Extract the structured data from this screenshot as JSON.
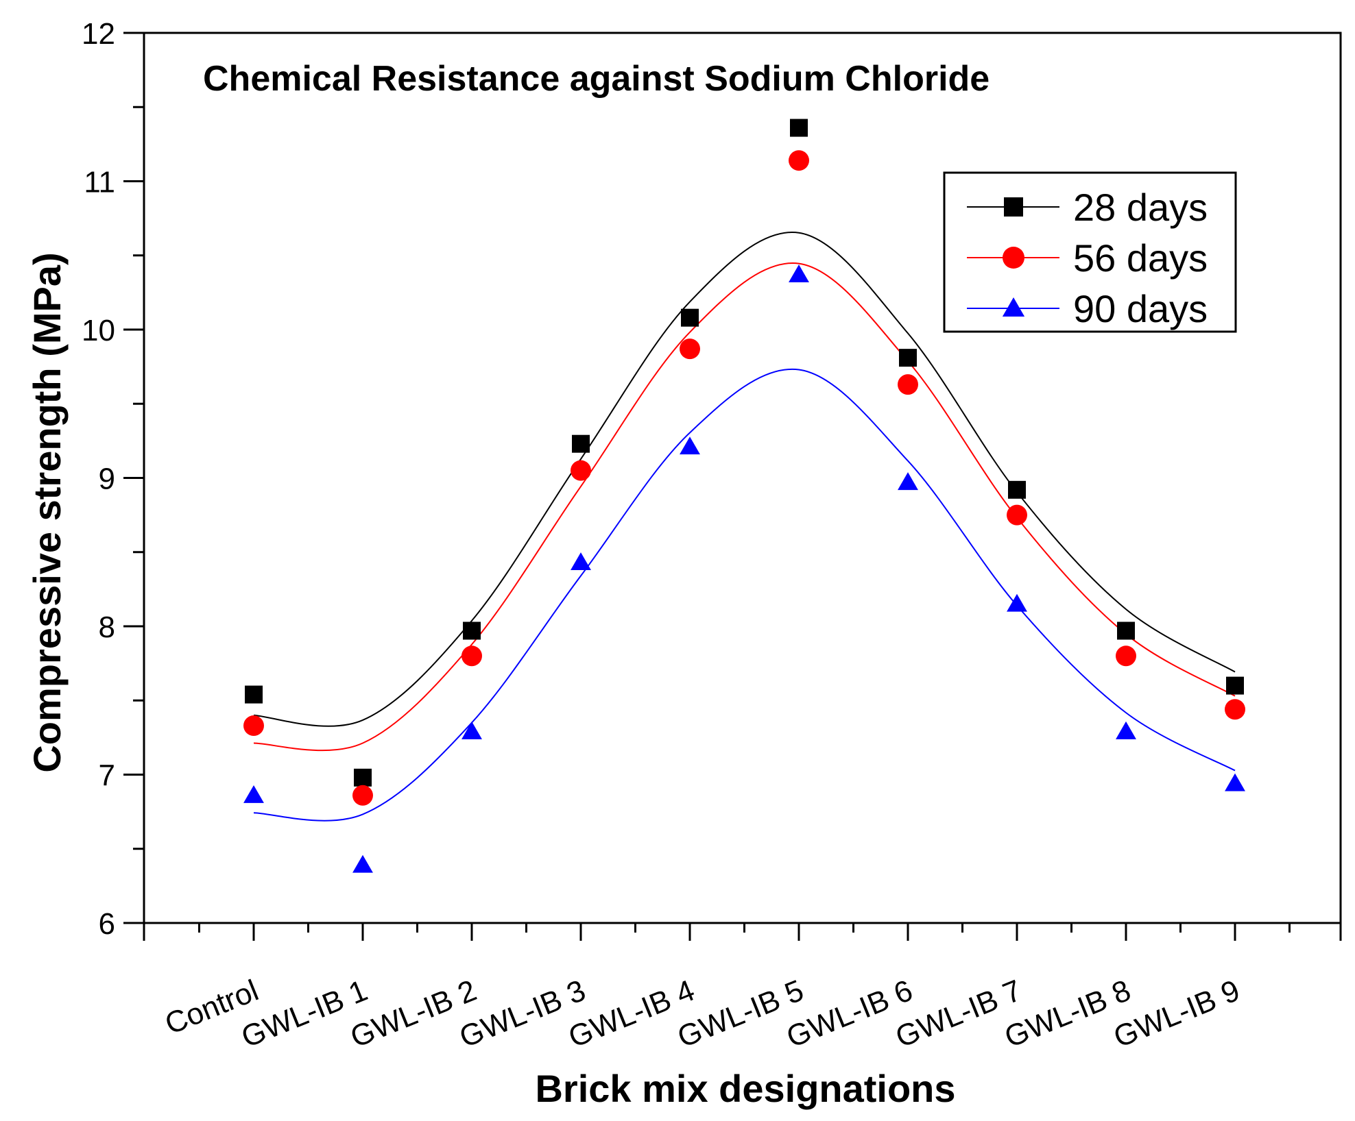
{
  "chart_data": {
    "type": "scatter",
    "title": "Chemical Resistance against Sodium Chloride",
    "xlabel": "Brick mix designations",
    "ylabel": "Compressive strength (MPa)",
    "categories": [
      "Control",
      "GWL-IB 1",
      "GWL-IB 2",
      "GWL-IB 3",
      "GWL-IB 4",
      "GWL-IB 5",
      "GWL-IB 6",
      "GWL-IB 7",
      "GWL-IB 8",
      "GWL-IB 9"
    ],
    "ylim": [
      6,
      12
    ],
    "yticks": [
      "6",
      "7",
      "8",
      "9",
      "10",
      "11",
      "12"
    ],
    "grid": false,
    "legend_position": "top-right",
    "fit_curves": true,
    "series": [
      {
        "name": "28 days",
        "marker": "square",
        "color": "#000000",
        "values": [
          7.54,
          6.98,
          7.97,
          9.23,
          10.08,
          11.36,
          9.81,
          8.92,
          7.97,
          7.6
        ]
      },
      {
        "name": "56 days",
        "marker": "circle",
        "color": "#ff0000",
        "values": [
          7.33,
          6.86,
          7.8,
          9.05,
          9.87,
          11.14,
          9.63,
          8.75,
          7.8,
          7.44
        ]
      },
      {
        "name": "90 days",
        "marker": "triangle",
        "color": "#0000ff",
        "values": [
          6.86,
          6.39,
          7.29,
          8.43,
          9.21,
          10.37,
          8.97,
          8.15,
          7.29,
          6.94
        ]
      }
    ]
  }
}
